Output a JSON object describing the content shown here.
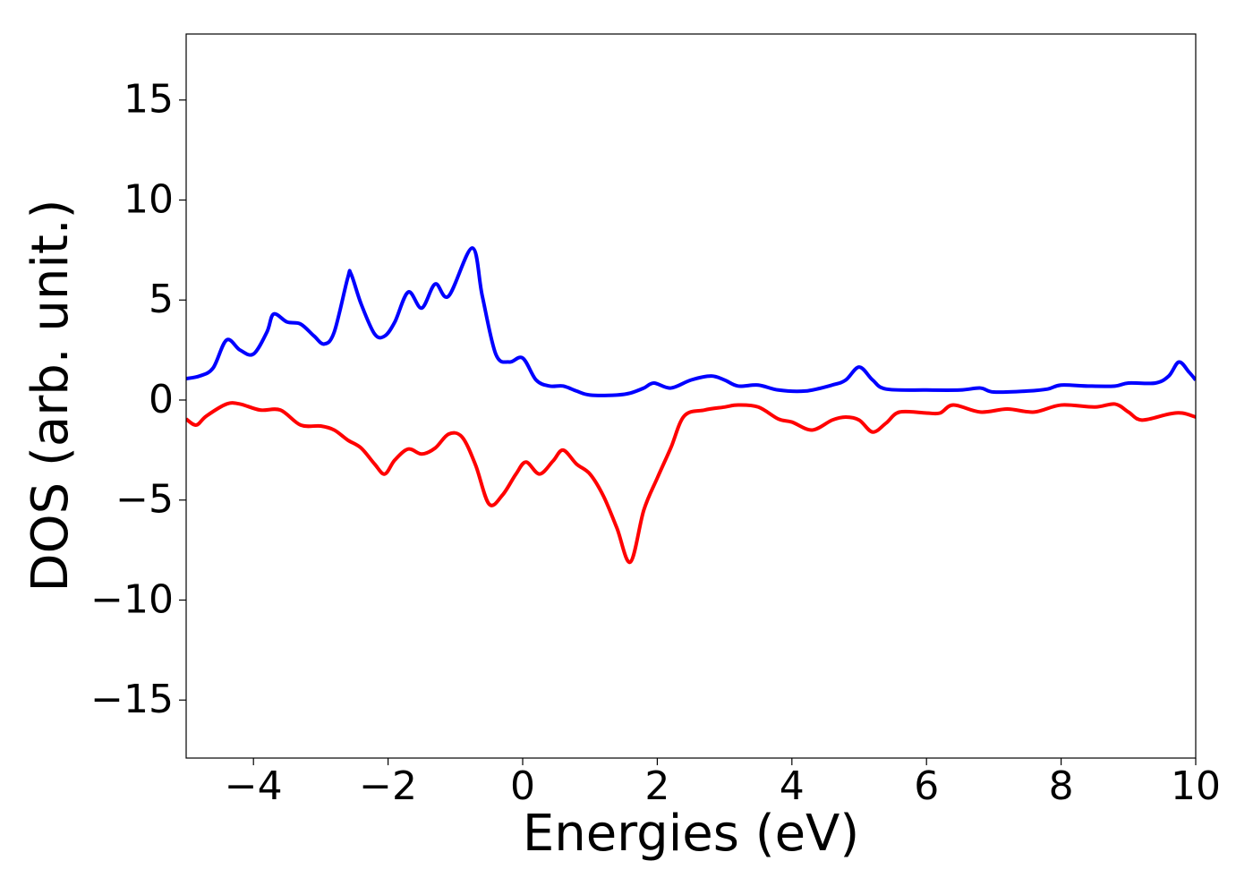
{
  "chart_data": {
    "type": "line",
    "x_label": "Energies (eV)",
    "y_label": "DOS (arb. unit.)",
    "xlim": [
      -5,
      10
    ],
    "ylim": [
      -17.9,
      18.3
    ],
    "xticks": [
      {
        "value": -4,
        "label": "−4"
      },
      {
        "value": -2,
        "label": "−2"
      },
      0,
      2,
      4,
      6,
      8,
      10
    ],
    "yticks": [
      {
        "value": -15,
        "label": "−15"
      },
      {
        "value": -10,
        "label": "−10"
      },
      {
        "value": -5,
        "label": "−5"
      },
      0,
      5,
      10,
      15
    ],
    "grid": false,
    "series": [
      {
        "color": "#0000ff",
        "x": [
          -5,
          -4.8,
          -4.6,
          -4.4,
          -4.2,
          -4.0,
          -3.8,
          -3.7,
          -3.5,
          -3.3,
          -3.1,
          -2.95,
          -2.8,
          -2.6,
          -2.55,
          -2.4,
          -2.2,
          -2.05,
          -1.9,
          -1.7,
          -1.5,
          -1.3,
          -1.1,
          -0.75,
          -0.6,
          -0.4,
          -0.2,
          0.0,
          0.2,
          0.4,
          0.6,
          0.8,
          1.0,
          1.4,
          1.6,
          1.8,
          1.95,
          2.2,
          2.5,
          2.8,
          3.0,
          3.2,
          3.5,
          3.8,
          4.2,
          4.6,
          4.8,
          5.0,
          5.2,
          5.4,
          6.0,
          6.5,
          6.8,
          7.0,
          7.5,
          7.8,
          8.0,
          8.4,
          8.8,
          9.0,
          9.4,
          9.6,
          9.75,
          9.9,
          10.0
        ],
        "values": [
          1.07,
          1.2,
          1.6,
          3.0,
          2.5,
          2.3,
          3.4,
          4.3,
          3.9,
          3.8,
          3.2,
          2.8,
          3.4,
          6.1,
          6.3,
          4.8,
          3.3,
          3.2,
          3.9,
          5.4,
          4.6,
          5.8,
          5.2,
          7.6,
          5.2,
          2.3,
          1.9,
          2.1,
          1.0,
          0.7,
          0.7,
          0.45,
          0.25,
          0.25,
          0.35,
          0.6,
          0.85,
          0.6,
          1.0,
          1.2,
          1.0,
          0.7,
          0.75,
          0.5,
          0.45,
          0.75,
          1.0,
          1.65,
          1.0,
          0.55,
          0.5,
          0.5,
          0.6,
          0.4,
          0.45,
          0.55,
          0.75,
          0.7,
          0.7,
          0.85,
          0.85,
          1.2,
          1.9,
          1.4,
          1.0
        ]
      },
      {
        "color": "#ff0000",
        "x": [
          -5,
          -4.85,
          -4.7,
          -4.4,
          -4.2,
          -3.9,
          -3.6,
          -3.3,
          -3.0,
          -2.8,
          -2.6,
          -2.4,
          -2.2,
          -2.05,
          -1.9,
          -1.7,
          -1.5,
          -1.3,
          -1.1,
          -0.9,
          -0.7,
          -0.5,
          -0.3,
          -0.1,
          0.05,
          0.25,
          0.45,
          0.6,
          0.8,
          1.0,
          1.2,
          1.4,
          1.6,
          1.8,
          2.0,
          2.2,
          2.4,
          2.7,
          3.0,
          3.2,
          3.5,
          3.8,
          4.0,
          4.3,
          4.6,
          4.8,
          5.0,
          5.2,
          5.4,
          5.6,
          6.0,
          6.2,
          6.4,
          6.8,
          7.2,
          7.6,
          8.0,
          8.5,
          8.8,
          9.0,
          9.2,
          9.6,
          9.8,
          10.0
        ],
        "values": [
          -0.95,
          -1.25,
          -0.8,
          -0.2,
          -0.2,
          -0.5,
          -0.5,
          -1.25,
          -1.3,
          -1.5,
          -2.0,
          -2.4,
          -3.2,
          -3.7,
          -3.0,
          -2.45,
          -2.7,
          -2.4,
          -1.7,
          -1.85,
          -3.25,
          -5.2,
          -4.75,
          -3.7,
          -3.1,
          -3.7,
          -3.05,
          -2.5,
          -3.2,
          -3.7,
          -4.8,
          -6.4,
          -8.1,
          -5.5,
          -3.9,
          -2.4,
          -0.8,
          -0.5,
          -0.35,
          -0.25,
          -0.35,
          -0.95,
          -1.1,
          -1.5,
          -1.0,
          -0.85,
          -1.0,
          -1.6,
          -1.15,
          -0.6,
          -0.65,
          -0.65,
          -0.25,
          -0.6,
          -0.45,
          -0.6,
          -0.25,
          -0.35,
          -0.2,
          -0.6,
          -1.0,
          -0.7,
          -0.65,
          -0.85
        ]
      }
    ]
  }
}
